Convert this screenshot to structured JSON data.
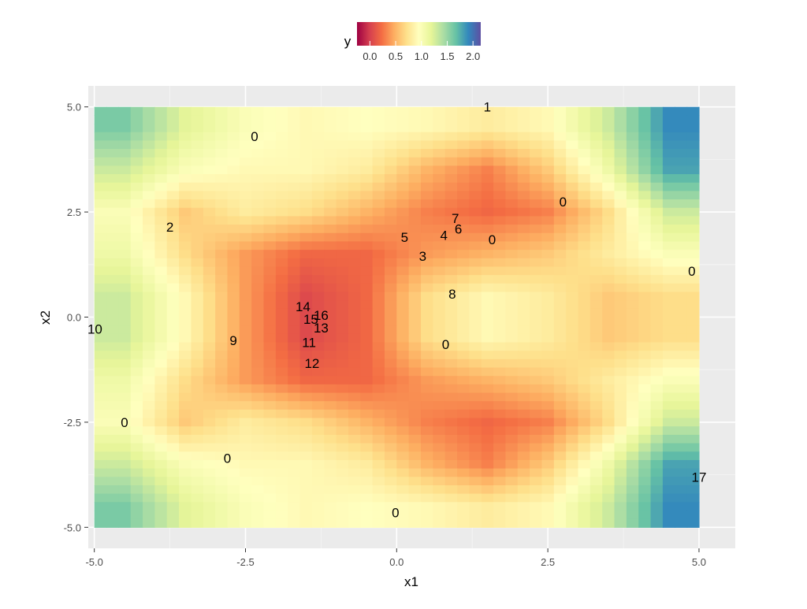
{
  "chart_data": {
    "type": "heatmap",
    "xlabel": "x1",
    "ylabel": "x2",
    "xlim": [
      -5.1,
      5.6
    ],
    "ylim": [
      -5.5,
      5.5
    ],
    "x_ticks": [
      -5.0,
      -2.5,
      0.0,
      2.5,
      5.0
    ],
    "x_tick_labels": [
      "-5.0",
      "-2.5",
      "0.0",
      "2.5",
      "5.0"
    ],
    "y_ticks": [
      -5.0,
      -2.5,
      0.0,
      2.5,
      5.0
    ],
    "y_tick_labels": [
      "-5.0",
      "-2.5",
      "0.0",
      "2.5",
      "5.0"
    ],
    "grid": true,
    "legend": {
      "title": "y",
      "position": "top",
      "range": [
        -0.25,
        2.15
      ],
      "ticks": [
        0.0,
        0.5,
        1.0,
        1.5,
        2.0
      ],
      "tick_labels": [
        "0.0",
        "0.5",
        "1.0",
        "1.5",
        "2.0"
      ]
    },
    "colors": {
      "panel": "#EBEBEB",
      "grid_major": "#FFFFFF",
      "grid_minor": "#F5F5F5",
      "scale": [
        "#9E0142",
        "#D53E4F",
        "#F46D43",
        "#FDAE61",
        "#FEE08B",
        "#FFFFBF",
        "#E6F598",
        "#ABDDA4",
        "#66C2A5",
        "#3288BD",
        "#5E4FA2"
      ]
    },
    "heatmap_extent": {
      "x": [
        -5.0,
        5.0
      ],
      "y": [
        -5.0,
        5.0
      ]
    },
    "heatmap_grid": {
      "x": [
        -4.5,
        -3.5,
        -2.5,
        -1.5,
        -0.5,
        0.5,
        1.5,
        2.5,
        3.5,
        4.5
      ],
      "y": [
        4.5,
        3.5,
        2.5,
        1.5,
        0.5,
        -0.5,
        -1.5,
        -2.5,
        -3.5,
        -4.5
      ],
      "z": [
        [
          1.6,
          1.2,
          1.0,
          0.9,
          0.95,
          0.9,
          0.8,
          0.9,
          1.3,
          1.9
        ],
        [
          1.3,
          1.0,
          0.9,
          0.9,
          0.8,
          0.5,
          0.3,
          0.6,
          1.1,
          1.8
        ],
        [
          1.0,
          0.6,
          0.8,
          0.7,
          0.5,
          0.3,
          0.2,
          0.3,
          0.7,
          1.3
        ],
        [
          1.1,
          0.7,
          0.4,
          0.2,
          0.2,
          0.4,
          0.5,
          0.6,
          0.8,
          1.0
        ],
        [
          1.3,
          0.9,
          0.4,
          0.05,
          0.2,
          0.7,
          0.9,
          0.8,
          0.6,
          0.7
        ],
        [
          1.3,
          0.9,
          0.4,
          0.05,
          0.2,
          0.7,
          0.9,
          0.8,
          0.6,
          0.7
        ],
        [
          1.1,
          0.7,
          0.4,
          0.2,
          0.2,
          0.4,
          0.5,
          0.6,
          0.8,
          1.0
        ],
        [
          1.0,
          0.6,
          0.8,
          0.7,
          0.5,
          0.3,
          0.2,
          0.3,
          0.7,
          1.3
        ],
        [
          1.3,
          1.0,
          0.9,
          0.9,
          0.8,
          0.5,
          0.3,
          0.6,
          1.1,
          1.8
        ],
        [
          1.6,
          1.2,
          1.0,
          0.9,
          0.95,
          0.9,
          0.8,
          0.9,
          1.3,
          1.9
        ]
      ]
    },
    "point_labels": [
      {
        "label": "1",
        "x": 1.5,
        "y": 5.0
      },
      {
        "label": "0",
        "x": -2.35,
        "y": 4.3
      },
      {
        "label": "0",
        "x": 2.75,
        "y": 2.75
      },
      {
        "label": "2",
        "x": -3.75,
        "y": 2.15
      },
      {
        "label": "7",
        "x": 0.97,
        "y": 2.35
      },
      {
        "label": "6",
        "x": 1.02,
        "y": 2.1
      },
      {
        "label": "4",
        "x": 0.78,
        "y": 1.95
      },
      {
        "label": "5",
        "x": 0.13,
        "y": 1.9
      },
      {
        "label": "0",
        "x": 1.58,
        "y": 1.85
      },
      {
        "label": "3",
        "x": 0.43,
        "y": 1.45
      },
      {
        "label": "0",
        "x": 4.88,
        "y": 1.1
      },
      {
        "label": "8",
        "x": 0.92,
        "y": 0.55
      },
      {
        "label": "14",
        "x": -1.55,
        "y": 0.25
      },
      {
        "label": "16",
        "x": -1.25,
        "y": 0.05
      },
      {
        "label": "15",
        "x": -1.42,
        "y": -0.05
      },
      {
        "label": "13",
        "x": -1.25,
        "y": -0.25
      },
      {
        "label": "10",
        "x": -4.99,
        "y": -0.28
      },
      {
        "label": "9",
        "x": -2.7,
        "y": -0.55
      },
      {
        "label": "11",
        "x": -1.45,
        "y": -0.6
      },
      {
        "label": "0",
        "x": 0.81,
        "y": -0.65
      },
      {
        "label": "12",
        "x": -1.4,
        "y": -1.1
      },
      {
        "label": "0",
        "x": -4.5,
        "y": -2.5
      },
      {
        "label": "0",
        "x": -2.8,
        "y": -3.35
      },
      {
        "label": "17",
        "x": 5.0,
        "y": -3.8
      },
      {
        "label": "0",
        "x": -0.02,
        "y": -4.65
      }
    ]
  }
}
